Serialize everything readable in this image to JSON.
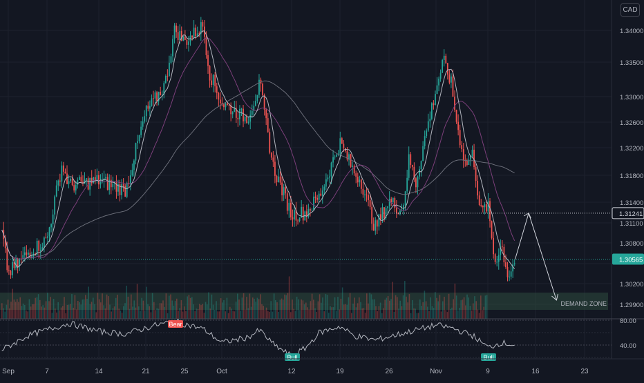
{
  "currency": "CAD",
  "colors": {
    "background": "#131722",
    "grid": "#1e222d",
    "up": "#26a69a",
    "down": "#ef5350",
    "sma_fast": "#b2b5be",
    "sma_mid": "#7b3f7a",
    "sma_slow": "#6a6d78",
    "current_price": "#26a69a",
    "target_price": "#d1d4dc",
    "demand_zone": "#2d4a3e",
    "rsi_line": "#b2b5be",
    "bear_label": "#ef5350",
    "bull_label": "#26a69a"
  },
  "chart_data": {
    "type": "candlestick",
    "symbol_currency": "CAD",
    "y_axis_ticks": [
      "1.34000",
      "1.33500",
      "1.33000",
      "1.32600",
      "1.32200",
      "1.31800",
      "1.31400",
      "1.31100",
      "1.30800",
      "1.30500",
      "1.30200",
      "1.29900"
    ],
    "y_tick_values": [
      1.34,
      1.335,
      1.33,
      1.326,
      1.322,
      1.318,
      1.314,
      1.311,
      1.308,
      1.305,
      1.302,
      1.299
    ],
    "x_axis_ticks": [
      "Sep",
      "7",
      "14",
      "21",
      "25",
      "Oct",
      "12",
      "19",
      "26",
      "Nov",
      "9",
      "16",
      "23"
    ],
    "current_price_label": "1.30565",
    "current_price": 1.30565,
    "target_price_label": "1.31241",
    "target_price": 1.31241,
    "demand_zone_label": "DEMAND ZONE",
    "demand_zone": [
      1.2982,
      1.3007
    ],
    "price_path_keypoints": [
      {
        "date": "Aug 31",
        "price": 1.3095
      },
      {
        "date": "Sep 1",
        "price": 1.3035
      },
      {
        "date": "Sep 4",
        "price": 1.3065
      },
      {
        "date": "Sep 7",
        "price": 1.3085
      },
      {
        "date": "Sep 9",
        "price": 1.3195
      },
      {
        "date": "Sep 10",
        "price": 1.3165
      },
      {
        "date": "Sep 14",
        "price": 1.3172
      },
      {
        "date": "Sep 18",
        "price": 1.3158
      },
      {
        "date": "Sep 21",
        "price": 1.3275
      },
      {
        "date": "Sep 23",
        "price": 1.3318
      },
      {
        "date": "Sep 24",
        "price": 1.3402
      },
      {
        "date": "Sep 25",
        "price": 1.3382
      },
      {
        "date": "Sep 28",
        "price": 1.3408
      },
      {
        "date": "Sep 29",
        "price": 1.3335
      },
      {
        "date": "Oct 1",
        "price": 1.329
      },
      {
        "date": "Oct 5",
        "price": 1.3265
      },
      {
        "date": "Oct 7",
        "price": 1.3318
      },
      {
        "date": "Oct 9",
        "price": 1.3195
      },
      {
        "date": "Oct 12",
        "price": 1.3122
      },
      {
        "date": "Oct 14",
        "price": 1.3125
      },
      {
        "date": "Oct 16",
        "price": 1.3148
      },
      {
        "date": "Oct 19",
        "price": 1.3228
      },
      {
        "date": "Oct 21",
        "price": 1.3185
      },
      {
        "date": "Oct 22",
        "price": 1.3172
      },
      {
        "date": "Oct 24",
        "price": 1.3102
      },
      {
        "date": "Oct 26",
        "price": 1.3142
      },
      {
        "date": "Oct 28",
        "price": 1.3128
      },
      {
        "date": "Oct 29",
        "price": 1.3205
      },
      {
        "date": "Oct 30",
        "price": 1.3168
      },
      {
        "date": "Oct 31",
        "price": 1.322
      },
      {
        "date": "Nov 2",
        "price": 1.3312
      },
      {
        "date": "Nov 3",
        "price": 1.3352
      },
      {
        "date": "Nov 4",
        "price": 1.3322
      },
      {
        "date": "Nov 5",
        "price": 1.3245
      },
      {
        "date": "Nov 6",
        "price": 1.3195
      },
      {
        "date": "Nov 7",
        "price": 1.3212
      },
      {
        "date": "Nov 8",
        "price": 1.3125
      },
      {
        "date": "Nov 9",
        "price": 1.3135
      },
      {
        "date": "Nov 10",
        "price": 1.3052
      },
      {
        "date": "Nov 11",
        "price": 1.3078
      },
      {
        "date": "Nov 12",
        "price": 1.303
      },
      {
        "date": "Nov 13",
        "price": 1.3056
      }
    ],
    "projection_path": [
      {
        "date": "Nov 13",
        "price": 1.3056
      },
      {
        "date": "Nov 15",
        "price": 1.3124
      },
      {
        "date": "Nov 19",
        "price": 1.2996
      }
    ],
    "rsi": {
      "levels": [
        "80.00",
        "40.00"
      ],
      "level_values": [
        80,
        40
      ],
      "labels": [
        {
          "text": "Bear",
          "type": "bear",
          "date": "Sep 24"
        },
        {
          "text": "Bull",
          "type": "bull",
          "date": "Oct 12"
        },
        {
          "text": "Bull",
          "type": "bull",
          "date": "Nov 9"
        }
      ],
      "keypoints": [
        {
          "date": "Aug 31",
          "value": 32
        },
        {
          "date": "Sep 4",
          "value": 55
        },
        {
          "date": "Sep 8",
          "value": 68
        },
        {
          "date": "Sep 10",
          "value": 75
        },
        {
          "date": "Sep 14",
          "value": 62
        },
        {
          "date": "Sep 18",
          "value": 58
        },
        {
          "date": "Sep 22",
          "value": 72
        },
        {
          "date": "Sep 24",
          "value": 78
        },
        {
          "date": "Sep 28",
          "value": 66
        },
        {
          "date": "Oct 1",
          "value": 44
        },
        {
          "date": "Oct 5",
          "value": 52
        },
        {
          "date": "Oct 7",
          "value": 64
        },
        {
          "date": "Oct 9",
          "value": 42
        },
        {
          "date": "Oct 12",
          "value": 22
        },
        {
          "date": "Oct 14",
          "value": 35
        },
        {
          "date": "Oct 16",
          "value": 60
        },
        {
          "date": "Oct 19",
          "value": 70
        },
        {
          "date": "Oct 21",
          "value": 55
        },
        {
          "date": "Oct 24",
          "value": 48
        },
        {
          "date": "Oct 27",
          "value": 56
        },
        {
          "date": "Oct 30",
          "value": 64
        },
        {
          "date": "Nov 2",
          "value": 72
        },
        {
          "date": "Nov 4",
          "value": 68
        },
        {
          "date": "Nov 7",
          "value": 55
        },
        {
          "date": "Nov 9",
          "value": 36
        },
        {
          "date": "Nov 11",
          "value": 44
        },
        {
          "date": "Nov 13",
          "value": 40
        }
      ]
    },
    "grid": true
  }
}
